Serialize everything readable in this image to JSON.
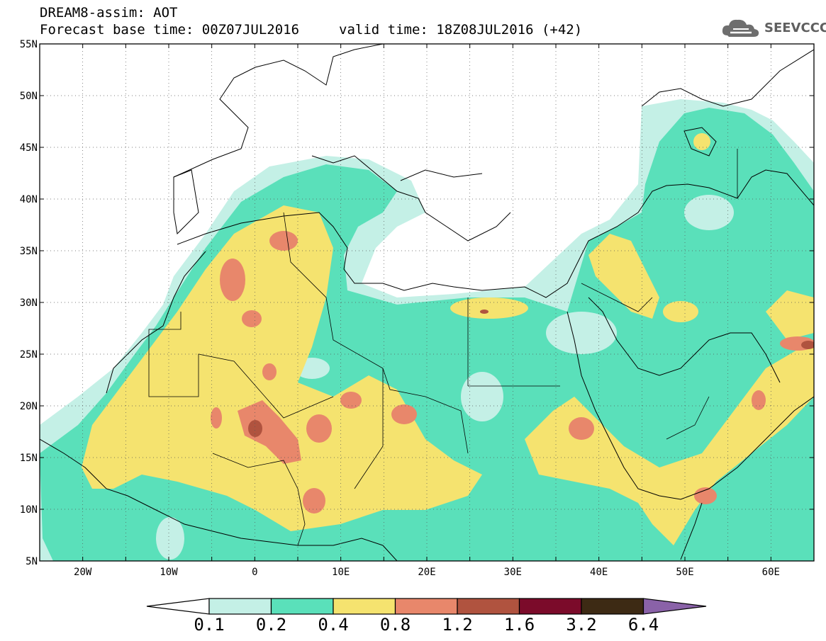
{
  "header": {
    "title": "DREAM8-assim: AOT",
    "base_time": "Forecast base time: 00Z07JUL2016",
    "valid_time": "valid time: 18Z08JUL2016 (+42)"
  },
  "logo": {
    "text": "SEEVCCC",
    "icon": "cloud-logo-icon"
  },
  "map": {
    "lat_range": [
      5,
      55
    ],
    "lon_range": [
      -25,
      65
    ],
    "lat_labels": [
      "55N",
      "50N",
      "45N",
      "40N",
      "35N",
      "30N",
      "25N",
      "20N",
      "15N",
      "10N",
      "5N"
    ],
    "lon_labels": [
      "20W",
      "10W",
      "0",
      "10E",
      "20E",
      "30E",
      "40E",
      "50E",
      "60E"
    ],
    "grid": "dotted"
  },
  "colorbar": {
    "colors": [
      "#ffffff",
      "#c4f0e6",
      "#5ae0ba",
      "#f5e36f",
      "#e8876b",
      "#b0533f",
      "#7b0b2a",
      "#3d2a14",
      "#8a62a8"
    ],
    "labels": [
      "0.1",
      "0.2",
      "0.4",
      "0.8",
      "1.2",
      "1.6",
      "3.2",
      "6.4"
    ]
  }
}
